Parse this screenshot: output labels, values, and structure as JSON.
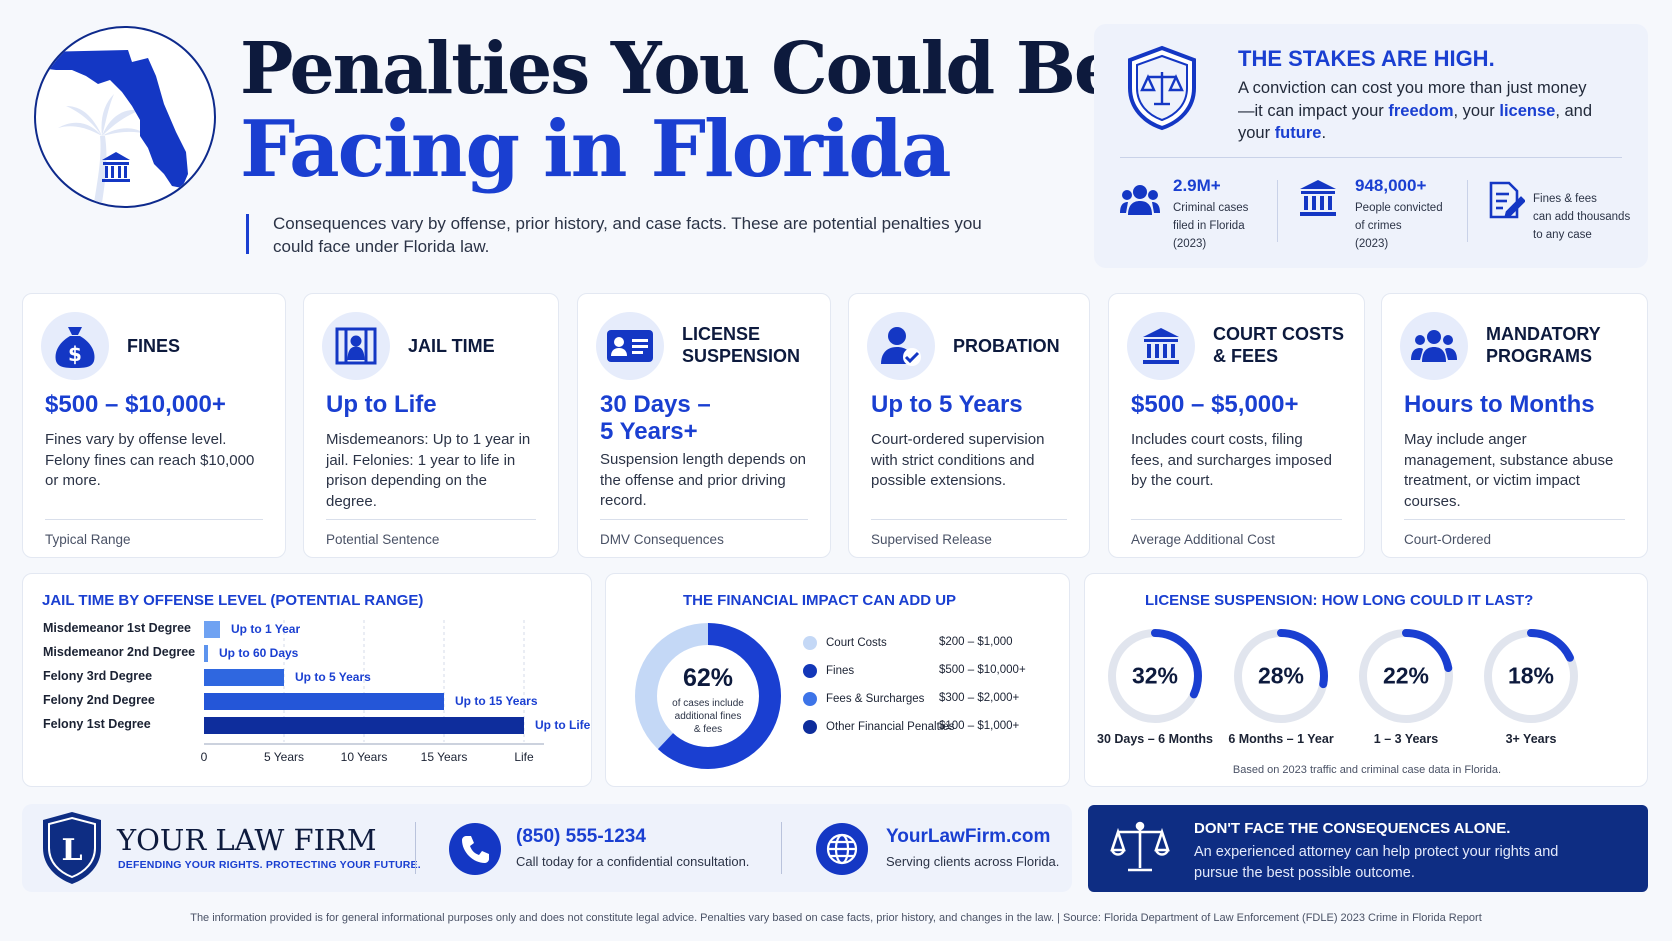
{
  "header": {
    "title_line1": "Penalties You Could Be",
    "title_line2": "Facing in Florida",
    "subtitle": "Consequences vary by offense, prior history, and case facts. These are potential penalties you could face under Florida law."
  },
  "stakes": {
    "title": "THE STAKES ARE HIGH.",
    "text_parts": [
      "A conviction can cost you more than just money—it can impact your ",
      "freedom",
      ", your ",
      "license",
      ", and your ",
      "future",
      "."
    ],
    "stats": [
      {
        "icon": "people-icon",
        "value": "2.9M+",
        "lines": [
          "Criminal cases",
          "filed in Florida",
          "(2023)"
        ]
      },
      {
        "icon": "courthouse-icon",
        "value": "948,000+",
        "lines": [
          "People convicted",
          "of crimes",
          "(2023)"
        ]
      },
      {
        "icon": "document-pen-icon",
        "value": "",
        "lines": [
          "Fines & fees",
          "can add thousands",
          "to any case"
        ]
      }
    ]
  },
  "penalties": [
    {
      "icon": "money-bag-icon",
      "title": [
        "FINES"
      ],
      "value": [
        "$500 – $10,000+"
      ],
      "desc": "Fines vary by offense level. Felony fines can reach $10,000 or more.",
      "footer": "Typical Range"
    },
    {
      "icon": "jail-icon",
      "title": [
        "JAIL TIME"
      ],
      "value": [
        "Up to Life"
      ],
      "desc": "Misdemeanors: Up to 1 year in jail. Felonies: 1 year to life in prison depending on the degree.",
      "footer": "Potential Sentence"
    },
    {
      "icon": "license-card-icon",
      "title": [
        "LICENSE",
        "SUSPENSION"
      ],
      "value": [
        "30 Days –",
        "5 Years+"
      ],
      "desc": "Suspension length depends on the offense and prior driving record.",
      "footer": "DMV Consequences"
    },
    {
      "icon": "person-check-icon",
      "title": [
        "PROBATION"
      ],
      "value": [
        "Up to 5 Years"
      ],
      "desc": "Court-ordered supervision with strict conditions and possible extensions.",
      "footer": "Supervised Release"
    },
    {
      "icon": "courthouse-icon",
      "title": [
        "COURT COSTS",
        "& FEES"
      ],
      "value": [
        "$500 – $5,000+"
      ],
      "desc": "Includes court costs, filing fees, and surcharges imposed by the court.",
      "footer": "Average Additional Cost"
    },
    {
      "icon": "group-icon",
      "title": [
        "MANDATORY",
        "PROGRAMS"
      ],
      "value": [
        "Hours to Months"
      ],
      "desc": "May include anger management, substance abuse treatment, or victim impact courses.",
      "footer": "Court-Ordered"
    }
  ],
  "chart_data": [
    {
      "type": "bar",
      "title": "JAIL TIME BY OFFENSE LEVEL (POTENTIAL RANGE)",
      "orientation": "horizontal",
      "categories": [
        "Misdemeanor 1st Degree",
        "Misdemeanor 2nd Degree",
        "Felony 3rd Degree",
        "Felony 2nd Degree",
        "Felony 1st Degree"
      ],
      "values": [
        1,
        0.16,
        5,
        15,
        20
      ],
      "value_labels": [
        "Up to 1 Year",
        "Up to 60 Days",
        "Up to 5 Years",
        "Up to 15 Years",
        "Up to Life"
      ],
      "bar_colors": [
        "#6fa2f2",
        "#5d94ee",
        "#2f67e0",
        "#2456d8",
        "#0e2d9c"
      ],
      "xticks": [
        "0",
        "5 Years",
        "10 Years",
        "15 Years",
        "Life"
      ],
      "xlim": [
        0,
        20
      ],
      "grid": true
    },
    {
      "type": "pie",
      "title": "THE FINANCIAL IMPACT CAN ADD UP",
      "center_value": "62%",
      "center_text": [
        "of cases include",
        "additional fines",
        "& fees"
      ],
      "values": [
        62,
        38
      ],
      "colors": [
        "#1a3fd1",
        "#c4d8f6"
      ],
      "legend": [
        {
          "label": "Court Costs",
          "range": "$200 – $1,000",
          "color": "#c4d8f6"
        },
        {
          "label": "Fines",
          "range": "$500 – $10,000+",
          "color": "#1337b8"
        },
        {
          "label": "Fees & Surcharges",
          "range": "$300 – $2,000+",
          "color": "#3d74e8"
        },
        {
          "label": "Other Financial Penalties",
          "range": "$100 – $1,000+",
          "color": "#0e2d9c"
        }
      ]
    },
    {
      "type": "pie",
      "title": "LICENSE SUSPENSION: HOW LONG COULD IT LAST?",
      "categories": [
        "30 Days – 6 Months",
        "6 Months – 1 Year",
        "1 – 3 Years",
        "3+ Years"
      ],
      "values": [
        32,
        28,
        22,
        18
      ],
      "value_labels": [
        "32%",
        "28%",
        "22%",
        "18%"
      ],
      "colors": [
        "#1a3fd1",
        "#e1e5ee"
      ],
      "note": "Based on 2023 traffic and criminal case data in Florida."
    }
  ],
  "footer": {
    "firm_initial": "L",
    "firm_name": "YOUR LAW FIRM",
    "tagline": "DEFENDING YOUR RIGHTS. PROTECTING YOUR FUTURE.",
    "phone": "(850) 555-1234",
    "phone_sub": "Call today for a confidential consultation.",
    "website": "YourLawFirm.com",
    "website_sub": "Serving clients across Florida.",
    "cta_title": "DON'T FACE THE CONSEQUENCES ALONE.",
    "cta_text": "An experienced attorney can help protect your rights and pursue the best possible outcome.",
    "disclaimer": "The information provided is for general informational purposes only and does not constitute legal advice. Penalties vary based on case facts, prior history, and changes in the law.   |   Source: Florida Department of Law Enforcement (FDLE) 2023 Crime in Florida Report"
  }
}
